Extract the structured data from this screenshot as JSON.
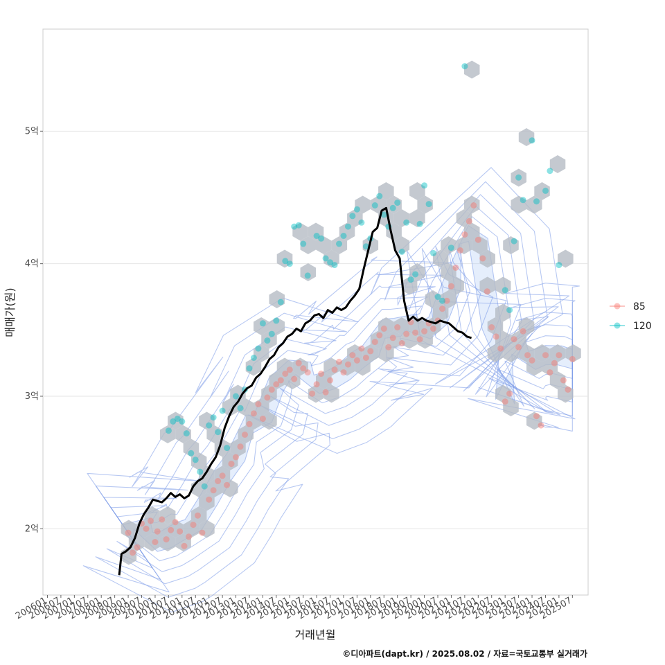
{
  "chart_data": {
    "type": "scatter",
    "xlabel": "거래년월",
    "ylabel": "매매가(원)",
    "caption": "©디아파트(dapt.kr) / 2025.08.02 / 자료=국토교통부 실거래가",
    "x_ticks": [
      "200601",
      "200607",
      "200701",
      "200707",
      "200801",
      "200807",
      "200901",
      "200907",
      "201001",
      "201007",
      "201101",
      "201107",
      "201201",
      "201207",
      "201301",
      "201307",
      "201401",
      "201407",
      "201501",
      "201507",
      "201601",
      "201607",
      "201701",
      "201707",
      "201801",
      "201807",
      "201901",
      "201907",
      "202001",
      "202007",
      "202101",
      "202107",
      "202201",
      "202207",
      "202301",
      "202307",
      "202401",
      "202407",
      "202501",
      "202507"
    ],
    "y_ticks": [
      {
        "value": 200000000,
        "label": "2억"
      },
      {
        "value": 300000000,
        "label": "3억"
      },
      {
        "value": 400000000,
        "label": "4억"
      },
      {
        "value": 500000000,
        "label": "5억"
      }
    ],
    "xlim": [
      "2005-11",
      "2026-02"
    ],
    "ylim": [
      150000000,
      577000000
    ],
    "grid": true,
    "legend_position": "right",
    "colors": {
      "85": "#f8766d",
      "120": "#00bfc4",
      "trend": "#000000",
      "hex": "#b5bcc4",
      "contour": "#7b9be8"
    },
    "series": [
      {
        "name": "85",
        "color": "#f8766d",
        "points": [
          [
            "2009-01",
            197000000
          ],
          [
            "2009-03",
            182000000
          ],
          [
            "2009-05",
            186000000
          ],
          [
            "2009-07",
            204000000
          ],
          [
            "2009-09",
            200000000
          ],
          [
            "2009-11",
            206000000
          ],
          [
            "2010-01",
            190000000
          ],
          [
            "2010-02",
            198000000
          ],
          [
            "2010-04",
            207000000
          ],
          [
            "2010-06",
            192000000
          ],
          [
            "2010-08",
            199000000
          ],
          [
            "2010-10",
            205000000
          ],
          [
            "2010-12",
            198000000
          ],
          [
            "2011-02",
            187000000
          ],
          [
            "2011-04",
            194000000
          ],
          [
            "2011-06",
            203000000
          ],
          [
            "2011-08",
            210000000
          ],
          [
            "2011-10",
            197000000
          ],
          [
            "2012-01",
            222000000
          ],
          [
            "2012-03",
            229000000
          ],
          [
            "2012-05",
            236000000
          ],
          [
            "2012-07",
            240000000
          ],
          [
            "2012-09",
            233000000
          ],
          [
            "2012-11",
            249000000
          ],
          [
            "2013-01",
            254000000
          ],
          [
            "2013-03",
            262000000
          ],
          [
            "2013-05",
            271000000
          ],
          [
            "2013-07",
            279000000
          ],
          [
            "2013-09",
            287000000
          ],
          [
            "2013-11",
            294000000
          ],
          [
            "2014-01",
            283000000
          ],
          [
            "2014-03",
            299000000
          ],
          [
            "2014-05",
            305000000
          ],
          [
            "2014-07",
            309000000
          ],
          [
            "2014-09",
            312000000
          ],
          [
            "2014-11",
            317000000
          ],
          [
            "2015-01",
            320000000
          ],
          [
            "2015-03",
            313000000
          ],
          [
            "2015-05",
            325000000
          ],
          [
            "2015-07",
            321000000
          ],
          [
            "2015-09",
            318000000
          ],
          [
            "2015-11",
            302000000
          ],
          [
            "2016-01",
            309000000
          ],
          [
            "2016-03",
            317000000
          ],
          [
            "2016-05",
            303000000
          ],
          [
            "2016-07",
            312000000
          ],
          [
            "2016-09",
            320000000
          ],
          [
            "2016-11",
            326000000
          ],
          [
            "2017-01",
            318000000
          ],
          [
            "2017-03",
            324000000
          ],
          [
            "2017-05",
            331000000
          ],
          [
            "2017-07",
            327000000
          ],
          [
            "2017-09",
            336000000
          ],
          [
            "2017-11",
            329000000
          ],
          [
            "2018-01",
            334000000
          ],
          [
            "2018-03",
            341000000
          ],
          [
            "2018-05",
            346000000
          ],
          [
            "2018-07",
            351000000
          ],
          [
            "2018-09",
            337000000
          ],
          [
            "2018-11",
            344000000
          ],
          [
            "2019-01",
            352000000
          ],
          [
            "2019-03",
            340000000
          ],
          [
            "2019-05",
            347000000
          ],
          [
            "2019-07",
            356000000
          ],
          [
            "2019-09",
            348000000
          ],
          [
            "2019-11",
            343000000
          ],
          [
            "2020-01",
            349000000
          ],
          [
            "2020-03",
            355000000
          ],
          [
            "2020-05",
            351000000
          ],
          [
            "2020-07",
            357000000
          ],
          [
            "2020-09",
            366000000
          ],
          [
            "2020-11",
            372000000
          ],
          [
            "2021-01",
            383000000
          ],
          [
            "2021-03",
            397000000
          ],
          [
            "2021-05",
            410000000
          ],
          [
            "2021-07",
            422000000
          ],
          [
            "2021-09",
            432000000
          ],
          [
            "2021-11",
            444000000
          ],
          [
            "2022-01",
            418000000
          ],
          [
            "2022-03",
            404000000
          ],
          [
            "2022-05",
            379000000
          ],
          [
            "2022-07",
            352000000
          ],
          [
            "2022-09",
            345000000
          ],
          [
            "2022-11",
            336000000
          ],
          [
            "2023-01",
            296000000
          ],
          [
            "2023-03",
            302000000
          ],
          [
            "2023-05",
            343000000
          ],
          [
            "2023-07",
            337000000
          ],
          [
            "2023-09",
            349000000
          ],
          [
            "2023-11",
            331000000
          ],
          [
            "2024-01",
            327000000
          ],
          [
            "2024-03",
            285000000
          ],
          [
            "2024-05",
            278000000
          ],
          [
            "2024-07",
            331000000
          ],
          [
            "2024-09",
            318000000
          ],
          [
            "2024-11",
            325000000
          ],
          [
            "2025-01",
            331000000
          ],
          [
            "2025-03",
            312000000
          ],
          [
            "2025-05",
            305000000
          ],
          [
            "2025-07",
            328000000
          ]
        ]
      },
      {
        "name": "120",
        "color": "#00bfc4",
        "points": [
          [
            "2010-07",
            274000000
          ],
          [
            "2010-09",
            281000000
          ],
          [
            "2010-11",
            283000000
          ],
          [
            "2011-01",
            281000000
          ],
          [
            "2011-03",
            272000000
          ],
          [
            "2011-05",
            257000000
          ],
          [
            "2011-07",
            252000000
          ],
          [
            "2011-09",
            243000000
          ],
          [
            "2011-11",
            232000000
          ],
          [
            "2012-01",
            278000000
          ],
          [
            "2012-03",
            284000000
          ],
          [
            "2012-05",
            273000000
          ],
          [
            "2012-07",
            289000000
          ],
          [
            "2012-09",
            261000000
          ],
          [
            "2013-01",
            300000000
          ],
          [
            "2013-03",
            291000000
          ],
          [
            "2013-05",
            305000000
          ],
          [
            "2013-07",
            321000000
          ],
          [
            "2013-09",
            329000000
          ],
          [
            "2013-11",
            336000000
          ],
          [
            "2014-01",
            355000000
          ],
          [
            "2014-03",
            342000000
          ],
          [
            "2014-05",
            347000000
          ],
          [
            "2014-07",
            357000000
          ],
          [
            "2014-09",
            371000000
          ],
          [
            "2014-11",
            402000000
          ],
          [
            "2015-01",
            400000000
          ],
          [
            "2015-03",
            428000000
          ],
          [
            "2015-05",
            429000000
          ],
          [
            "2015-07",
            415000000
          ],
          [
            "2015-09",
            391000000
          ],
          [
            "2016-01",
            421000000
          ],
          [
            "2016-03",
            419000000
          ],
          [
            "2016-05",
            404000000
          ],
          [
            "2016-07",
            401000000
          ],
          [
            "2016-09",
            399000000
          ],
          [
            "2016-11",
            415000000
          ],
          [
            "2017-01",
            421000000
          ],
          [
            "2017-03",
            428000000
          ],
          [
            "2017-05",
            436000000
          ],
          [
            "2017-07",
            441000000
          ],
          [
            "2017-09",
            431000000
          ],
          [
            "2017-11",
            413000000
          ],
          [
            "2018-01",
            419000000
          ],
          [
            "2018-03",
            444000000
          ],
          [
            "2018-05",
            451000000
          ],
          [
            "2018-07",
            437000000
          ],
          [
            "2018-09",
            428000000
          ],
          [
            "2018-11",
            442000000
          ],
          [
            "2019-01",
            446000000
          ],
          [
            "2019-03",
            409000000
          ],
          [
            "2019-05",
            431000000
          ],
          [
            "2019-07",
            388000000
          ],
          [
            "2019-09",
            392000000
          ],
          [
            "2019-11",
            430000000
          ],
          [
            "2020-01",
            459000000
          ],
          [
            "2020-03",
            445000000
          ],
          [
            "2020-05",
            408000000
          ],
          [
            "2020-07",
            375000000
          ],
          [
            "2020-09",
            372000000
          ],
          [
            "2021-07",
            549000000
          ],
          [
            "2021-01",
            412000000
          ],
          [
            "2023-01",
            380000000
          ],
          [
            "2023-03",
            365000000
          ],
          [
            "2023-05",
            417000000
          ],
          [
            "2023-07",
            465000000
          ],
          [
            "2023-09",
            448000000
          ],
          [
            "2024-01",
            493000000
          ],
          [
            "2024-03",
            447000000
          ],
          [
            "2024-07",
            455000000
          ],
          [
            "2024-09",
            470000000
          ],
          [
            "2025-01",
            399000000
          ]
        ]
      }
    ],
    "trend": [
      [
        "2008-09",
        165000000
      ],
      [
        "2008-10",
        181000000
      ],
      [
        "2008-12",
        183000000
      ],
      [
        "2009-02",
        186000000
      ],
      [
        "2009-04",
        193000000
      ],
      [
        "2009-06",
        204000000
      ],
      [
        "2009-08",
        211000000
      ],
      [
        "2009-10",
        216000000
      ],
      [
        "2009-12",
        222000000
      ],
      [
        "2010-02",
        221000000
      ],
      [
        "2010-04",
        220000000
      ],
      [
        "2010-06",
        223000000
      ],
      [
        "2010-08",
        227000000
      ],
      [
        "2010-10",
        224000000
      ],
      [
        "2010-12",
        226000000
      ],
      [
        "2011-02",
        223000000
      ],
      [
        "2011-04",
        225000000
      ],
      [
        "2011-06",
        232000000
      ],
      [
        "2011-08",
        236000000
      ],
      [
        "2011-10",
        238000000
      ],
      [
        "2011-12",
        243000000
      ],
      [
        "2012-02",
        249000000
      ],
      [
        "2012-04",
        254000000
      ],
      [
        "2012-06",
        263000000
      ],
      [
        "2012-08",
        276000000
      ],
      [
        "2012-10",
        285000000
      ],
      [
        "2012-12",
        292000000
      ],
      [
        "2013-02",
        296000000
      ],
      [
        "2013-04",
        302000000
      ],
      [
        "2013-06",
        306000000
      ],
      [
        "2013-08",
        308000000
      ],
      [
        "2013-10",
        314000000
      ],
      [
        "2013-12",
        317000000
      ],
      [
        "2014-02",
        322000000
      ],
      [
        "2014-04",
        328000000
      ],
      [
        "2014-06",
        331000000
      ],
      [
        "2014-08",
        337000000
      ],
      [
        "2014-10",
        340000000
      ],
      [
        "2014-12",
        345000000
      ],
      [
        "2015-02",
        347000000
      ],
      [
        "2015-04",
        351000000
      ],
      [
        "2015-06",
        349000000
      ],
      [
        "2015-08",
        355000000
      ],
      [
        "2015-10",
        357000000
      ],
      [
        "2015-12",
        361000000
      ],
      [
        "2016-02",
        362000000
      ],
      [
        "2016-04",
        359000000
      ],
      [
        "2016-06",
        365000000
      ],
      [
        "2016-08",
        363000000
      ],
      [
        "2016-10",
        367000000
      ],
      [
        "2016-12",
        365000000
      ],
      [
        "2017-02",
        367000000
      ],
      [
        "2017-04",
        372000000
      ],
      [
        "2017-06",
        376000000
      ],
      [
        "2017-08",
        381000000
      ],
      [
        "2017-10",
        396000000
      ],
      [
        "2017-12",
        410000000
      ],
      [
        "2018-02",
        424000000
      ],
      [
        "2018-04",
        427000000
      ],
      [
        "2018-06",
        440000000
      ],
      [
        "2018-08",
        442000000
      ],
      [
        "2018-10",
        425000000
      ],
      [
        "2018-12",
        410000000
      ],
      [
        "2019-02",
        404000000
      ],
      [
        "2019-04",
        372000000
      ],
      [
        "2019-06",
        357000000
      ],
      [
        "2019-08",
        360000000
      ],
      [
        "2019-10",
        357000000
      ],
      [
        "2019-12",
        359000000
      ],
      [
        "2020-02",
        357000000
      ],
      [
        "2020-04",
        356000000
      ],
      [
        "2020-06",
        355000000
      ],
      [
        "2020-08",
        357000000
      ],
      [
        "2020-10",
        356000000
      ],
      [
        "2020-12",
        355000000
      ],
      [
        "2021-02",
        352000000
      ],
      [
        "2021-04",
        349000000
      ],
      [
        "2021-06",
        348000000
      ],
      [
        "2021-08",
        345000000
      ],
      [
        "2021-10",
        344000000
      ]
    ]
  }
}
